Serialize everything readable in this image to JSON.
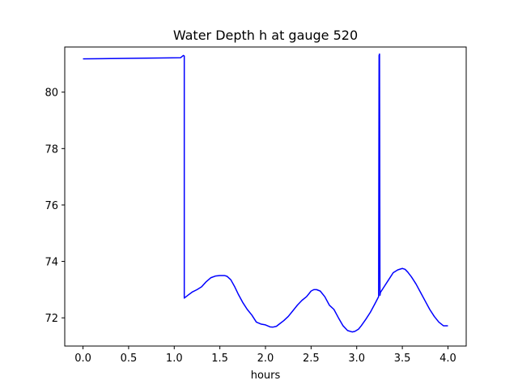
{
  "chart_data": {
    "type": "line",
    "title": "Water Depth h at gauge 520",
    "xlabel": "hours",
    "ylabel": "",
    "xlim": [
      -0.2,
      4.2
    ],
    "ylim": [
      71.0,
      81.6
    ],
    "xticks": [
      0.0,
      0.5,
      1.0,
      1.5,
      2.0,
      2.5,
      3.0,
      3.5,
      4.0
    ],
    "xtick_labels": [
      "0.0",
      "0.5",
      "1.0",
      "1.5",
      "2.0",
      "2.5",
      "3.0",
      "3.5",
      "4.0"
    ],
    "yticks": [
      72,
      74,
      76,
      78,
      80
    ],
    "ytick_labels": [
      "72",
      "74",
      "76",
      "78",
      "80"
    ],
    "grid": false,
    "series": [
      {
        "color": "#0000ff",
        "x": [
          0.0,
          1.07,
          1.1,
          1.11,
          1.11,
          1.15,
          1.2,
          1.25,
          1.3,
          1.35,
          1.4,
          1.45,
          1.5,
          1.55,
          1.58,
          1.62,
          1.66,
          1.7,
          1.75,
          1.8,
          1.85,
          1.9,
          1.95,
          2.0,
          2.05,
          2.08,
          2.12,
          2.16,
          2.2,
          2.25,
          2.3,
          2.35,
          2.4,
          2.45,
          2.5,
          2.53,
          2.56,
          2.6,
          2.65,
          2.7,
          2.75,
          2.8,
          2.85,
          2.9,
          2.95,
          2.98,
          3.02,
          3.05,
          3.1,
          3.15,
          3.2,
          3.24,
          3.245,
          3.25,
          3.255,
          3.26,
          3.3,
          3.35,
          3.4,
          3.45,
          3.5,
          3.53,
          3.56,
          3.6,
          3.65,
          3.7,
          3.75,
          3.8,
          3.85,
          3.9,
          3.95,
          4.0
        ],
        "y": [
          81.18,
          81.22,
          81.3,
          81.28,
          72.7,
          72.8,
          72.92,
          73.0,
          73.1,
          73.28,
          73.42,
          73.48,
          73.5,
          73.5,
          73.47,
          73.35,
          73.12,
          72.85,
          72.55,
          72.3,
          72.1,
          71.85,
          71.78,
          71.75,
          71.68,
          71.67,
          71.7,
          71.8,
          71.9,
          72.05,
          72.25,
          72.45,
          72.62,
          72.75,
          72.95,
          73.0,
          73.0,
          72.95,
          72.75,
          72.45,
          72.3,
          72.0,
          71.72,
          71.55,
          71.5,
          71.52,
          71.6,
          71.72,
          71.95,
          72.2,
          72.5,
          72.75,
          81.3,
          81.35,
          72.8,
          72.9,
          73.1,
          73.35,
          73.6,
          73.7,
          73.75,
          73.72,
          73.62,
          73.45,
          73.2,
          72.9,
          72.6,
          72.3,
          72.05,
          71.85,
          71.72,
          71.72
        ]
      }
    ]
  }
}
